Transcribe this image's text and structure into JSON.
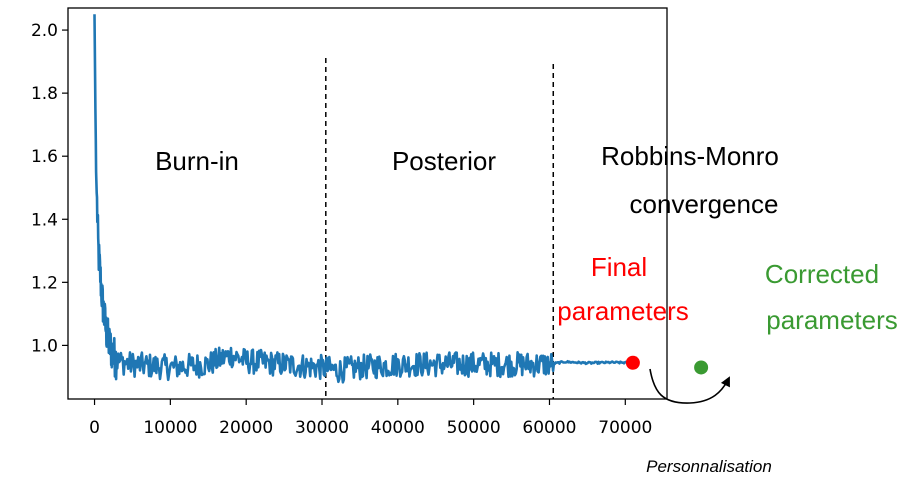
{
  "chart_data": {
    "type": "line",
    "xlim": [
      -3500,
      75500
    ],
    "ylim": [
      0.83,
      2.07
    ],
    "x_ticks": [
      0,
      10000,
      20000,
      30000,
      40000,
      50000,
      60000,
      70000
    ],
    "x_tick_labels": [
      "0",
      "10000",
      "20000",
      "30000",
      "40000",
      "50000",
      "60000",
      "70000"
    ],
    "y_ticks": [
      1.0,
      1.2,
      1.4,
      1.6,
      1.8,
      2.0
    ],
    "y_tick_labels": [
      "1.0",
      "1.2",
      "1.4",
      "1.6",
      "1.8",
      "2.0"
    ],
    "grid": false,
    "series": [
      {
        "color": "#1f77b4",
        "description": "noisy trace: starts at ~2.05, drops to ~0.95 by ~3000, fluctuates around 0.94 until 60000, then smooth ~0.945 to ~71000",
        "x": [
          0,
          200,
          500,
          1000,
          1500,
          2000,
          2500,
          3000,
          5000,
          10000,
          15000,
          18000,
          20000,
          25000,
          30000,
          32000,
          35000,
          40000,
          45000,
          50000,
          55000,
          60000,
          62000,
          65000,
          68000,
          71000
        ],
        "y": [
          2.05,
          1.55,
          1.3,
          1.15,
          1.05,
          1.0,
          0.97,
          0.95,
          0.94,
          0.93,
          0.94,
          0.97,
          0.95,
          0.94,
          0.93,
          0.92,
          0.93,
          0.94,
          0.94,
          0.94,
          0.94,
          0.94,
          0.948,
          0.944,
          0.946,
          0.945
        ],
        "noise": 0.04
      }
    ],
    "vlines": [
      30500,
      60500
    ],
    "regions": [
      "Burn-in",
      "Posterior",
      "Robbins-Monro",
      "convergence"
    ],
    "final_point": {
      "x": 71000,
      "y": 0.945,
      "color": "#ff0000",
      "label_line1": "Final",
      "label_line2": "parameters"
    },
    "corrected_point": {
      "x": 80000,
      "y": 0.93,
      "color": "#3a9a32",
      "label_line1": "Corrected",
      "label_line2": "parameters"
    },
    "caption": "Personnalisation"
  }
}
